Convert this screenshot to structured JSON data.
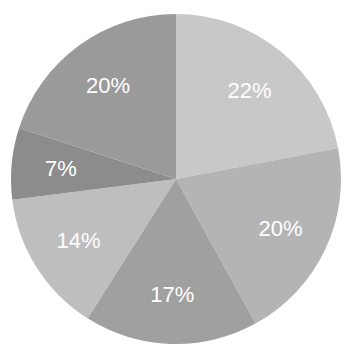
{
  "chart_data": {
    "type": "pie",
    "categories": [
      null,
      null,
      null,
      null,
      null,
      null
    ],
    "values": [
      22,
      20,
      17,
      14,
      7,
      20
    ],
    "value_labels": [
      "22%",
      "20%",
      "17%",
      "14%",
      "7%",
      "20%"
    ],
    "colors": [
      "#c8c8c8",
      "#b4b4b4",
      "#a0a0a0",
      "#bebebe",
      "#8c8c8c",
      "#9a9a9a"
    ],
    "data_labels": true
  }
}
